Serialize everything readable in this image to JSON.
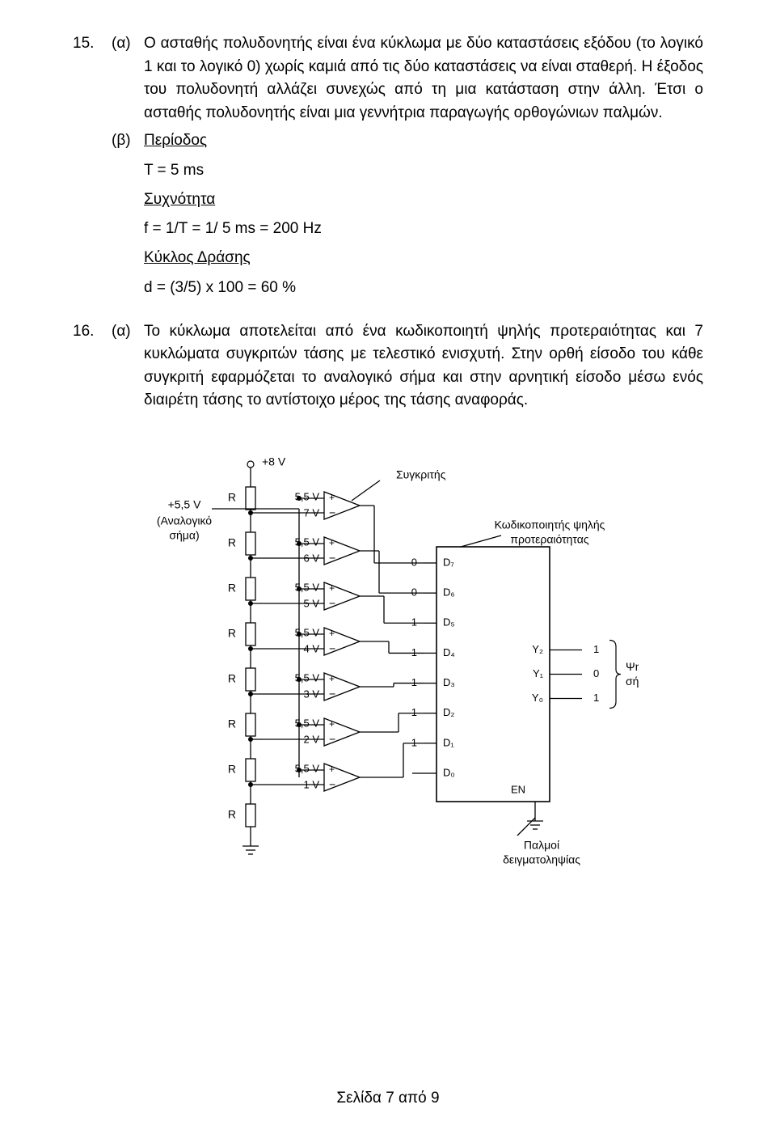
{
  "q15": {
    "num": "15.",
    "a_label": "(α)",
    "a_text": "Ο ασταθής πολυδονητής είναι ένα κύκλωμα με δύο καταστάσεις εξόδου (το λογικό 1 και το λογικό 0) χωρίς καμιά από τις δύο καταστάσεις να είναι σταθερή. Η έξοδος του πολυδονητή αλλάζει συνεχώς από τη μια κατάσταση στην άλλη. Έτσι ο ασταθής πολυδονητής είναι μια γεννήτρια παραγωγής ορθογώνιων παλμών.",
    "b_label": "(β)",
    "b_heading_period": "Περίοδος",
    "b_period": "T = 5 ms",
    "b_heading_freq": "Συχνότητα",
    "b_freq": "f = 1/T = 1/ 5 ms = 200 Hz",
    "b_heading_duty": "Κύκλος Δράσης",
    "b_duty": "d = (3/5) x 100 = 60 %"
  },
  "q16": {
    "num": "16.",
    "a_label": "(α)",
    "a_text": "Το κύκλωμα αποτελείται από ένα κωδικοποιητή ψηλής προτεραιότητας και 7 κυκλώματα συγκριτών τάσης με τελεστικό ενισχυτή. Στην ορθή είσοδο του κάθε συγκριτή εφαρμόζεται το αναλογικό σήμα και στην αρνητική είσοδο μέσω ενός διαιρέτη τάσης το αντίστοιχο μέρος της τάσης αναφοράς."
  },
  "diagram": {
    "colors": {
      "bg": "#ffffff",
      "stroke": "#000000",
      "text": "#000000"
    },
    "font_size_label": 14,
    "font_size_small": 13,
    "vcc_label": "+8 V",
    "analog_v_label": "+5,5 V",
    "analog_text_line1": "(Αναλογικό",
    "analog_text_line2": "σήμα)",
    "resistor_label": "R",
    "comparator_label": "Συγκριτής",
    "encoder_line1": "Κωδικοποιητής ψηλής",
    "encoder_line2": "προτεραιότητας",
    "sampling_line1": "Παλμοί",
    "sampling_line2": "δειγματοληψίας",
    "digital_line1": "Ψηφιακό",
    "digital_line2": "σήμα",
    "en_label": "EN",
    "plus": "+",
    "minus": "−",
    "comparators": [
      {
        "vplus": "5,5 V",
        "vminus": "7 V"
      },
      {
        "vplus": "5,5 V",
        "vminus": "6 V"
      },
      {
        "vplus": "5,5 V",
        "vminus": "5 V"
      },
      {
        "vplus": "5,5 V",
        "vminus": "4 V"
      },
      {
        "vplus": "5,5 V",
        "vminus": "3 V"
      },
      {
        "vplus": "5,5 V",
        "vminus": "2 V"
      },
      {
        "vplus": "5,5 V",
        "vminus": "1 V"
      }
    ],
    "d_labels": [
      "D₇",
      "D₆",
      "D₅",
      "D₄",
      "D₃",
      "D₂",
      "D₁",
      "D₀"
    ],
    "d_values": [
      "0",
      "0",
      "1",
      "1",
      "1",
      "1",
      "1",
      ""
    ],
    "y_labels": [
      "Y₂",
      "Y₁",
      "Y₀"
    ],
    "y_values": [
      "1",
      "0",
      "1"
    ]
  },
  "footer": "Σελίδα 7 από 9"
}
